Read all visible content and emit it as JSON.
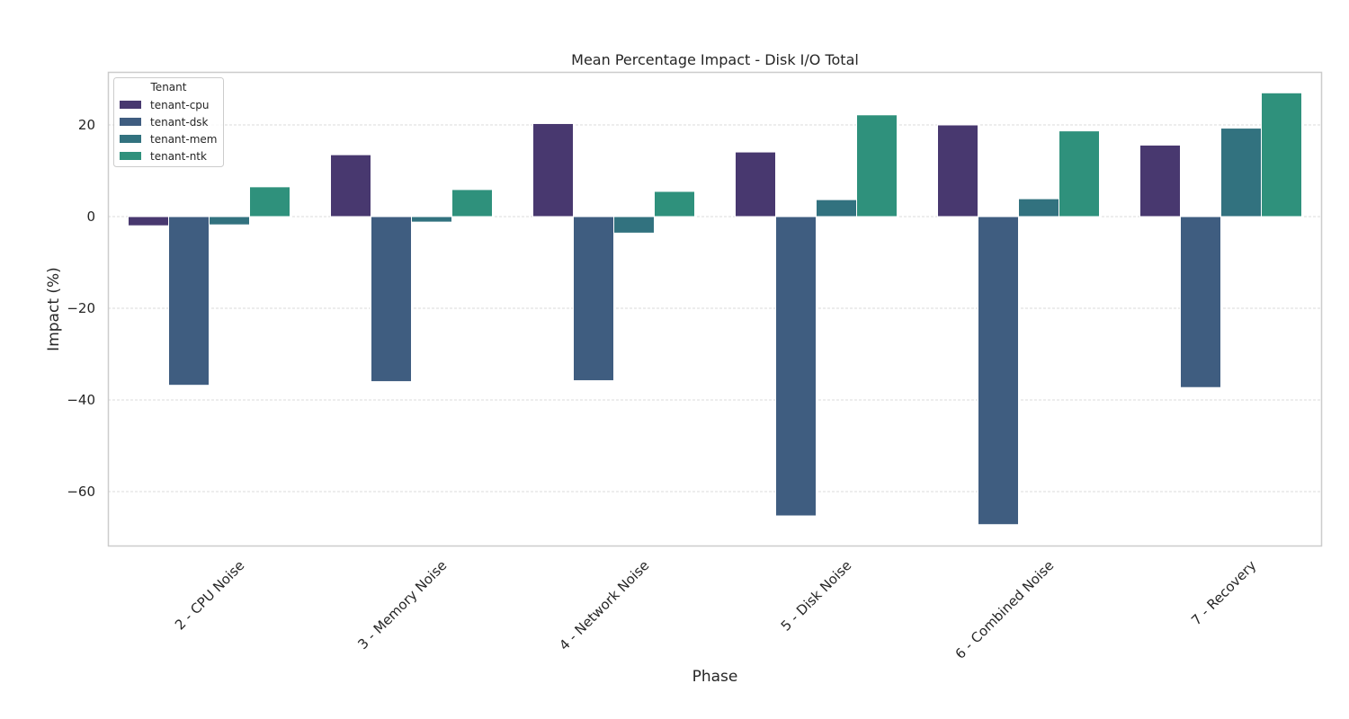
{
  "chart_data": {
    "type": "bar",
    "title": "Mean Percentage Impact - Disk I/O Total",
    "xlabel": "Phase",
    "ylabel": "Impact (%)",
    "ylim": [
      -72.5,
      31.5
    ],
    "yticks": [
      20,
      0,
      -20,
      -40,
      -60
    ],
    "ytick_labels": [
      "20",
      "0",
      "−20",
      "−40",
      "−60"
    ],
    "grid": true,
    "legend": {
      "title": "Tenant",
      "position": "top-left"
    },
    "categories": [
      "2 - CPU Noise",
      "3 - Memory Noise",
      "4 - Network Noise",
      "5 - Disk Noise",
      "6 - Combined Noise",
      "7 - Recovery"
    ],
    "series": [
      {
        "name": "tenant-cpu",
        "color": "#48386f",
        "values": [
          -2.0,
          13.5,
          20.3,
          14.1,
          20.0,
          15.6
        ]
      },
      {
        "name": "tenant-dsk",
        "color": "#3f5d80",
        "values": [
          -36.8,
          -36.0,
          -35.8,
          -65.3,
          -67.2,
          -37.3
        ]
      },
      {
        "name": "tenant-mem",
        "color": "#32727f",
        "values": [
          -1.8,
          -1.2,
          -3.6,
          3.7,
          3.9,
          19.3
        ]
      },
      {
        "name": "tenant-ntk",
        "color": "#2f917c",
        "values": [
          6.5,
          5.9,
          5.5,
          22.2,
          18.7,
          27.0
        ]
      }
    ]
  }
}
